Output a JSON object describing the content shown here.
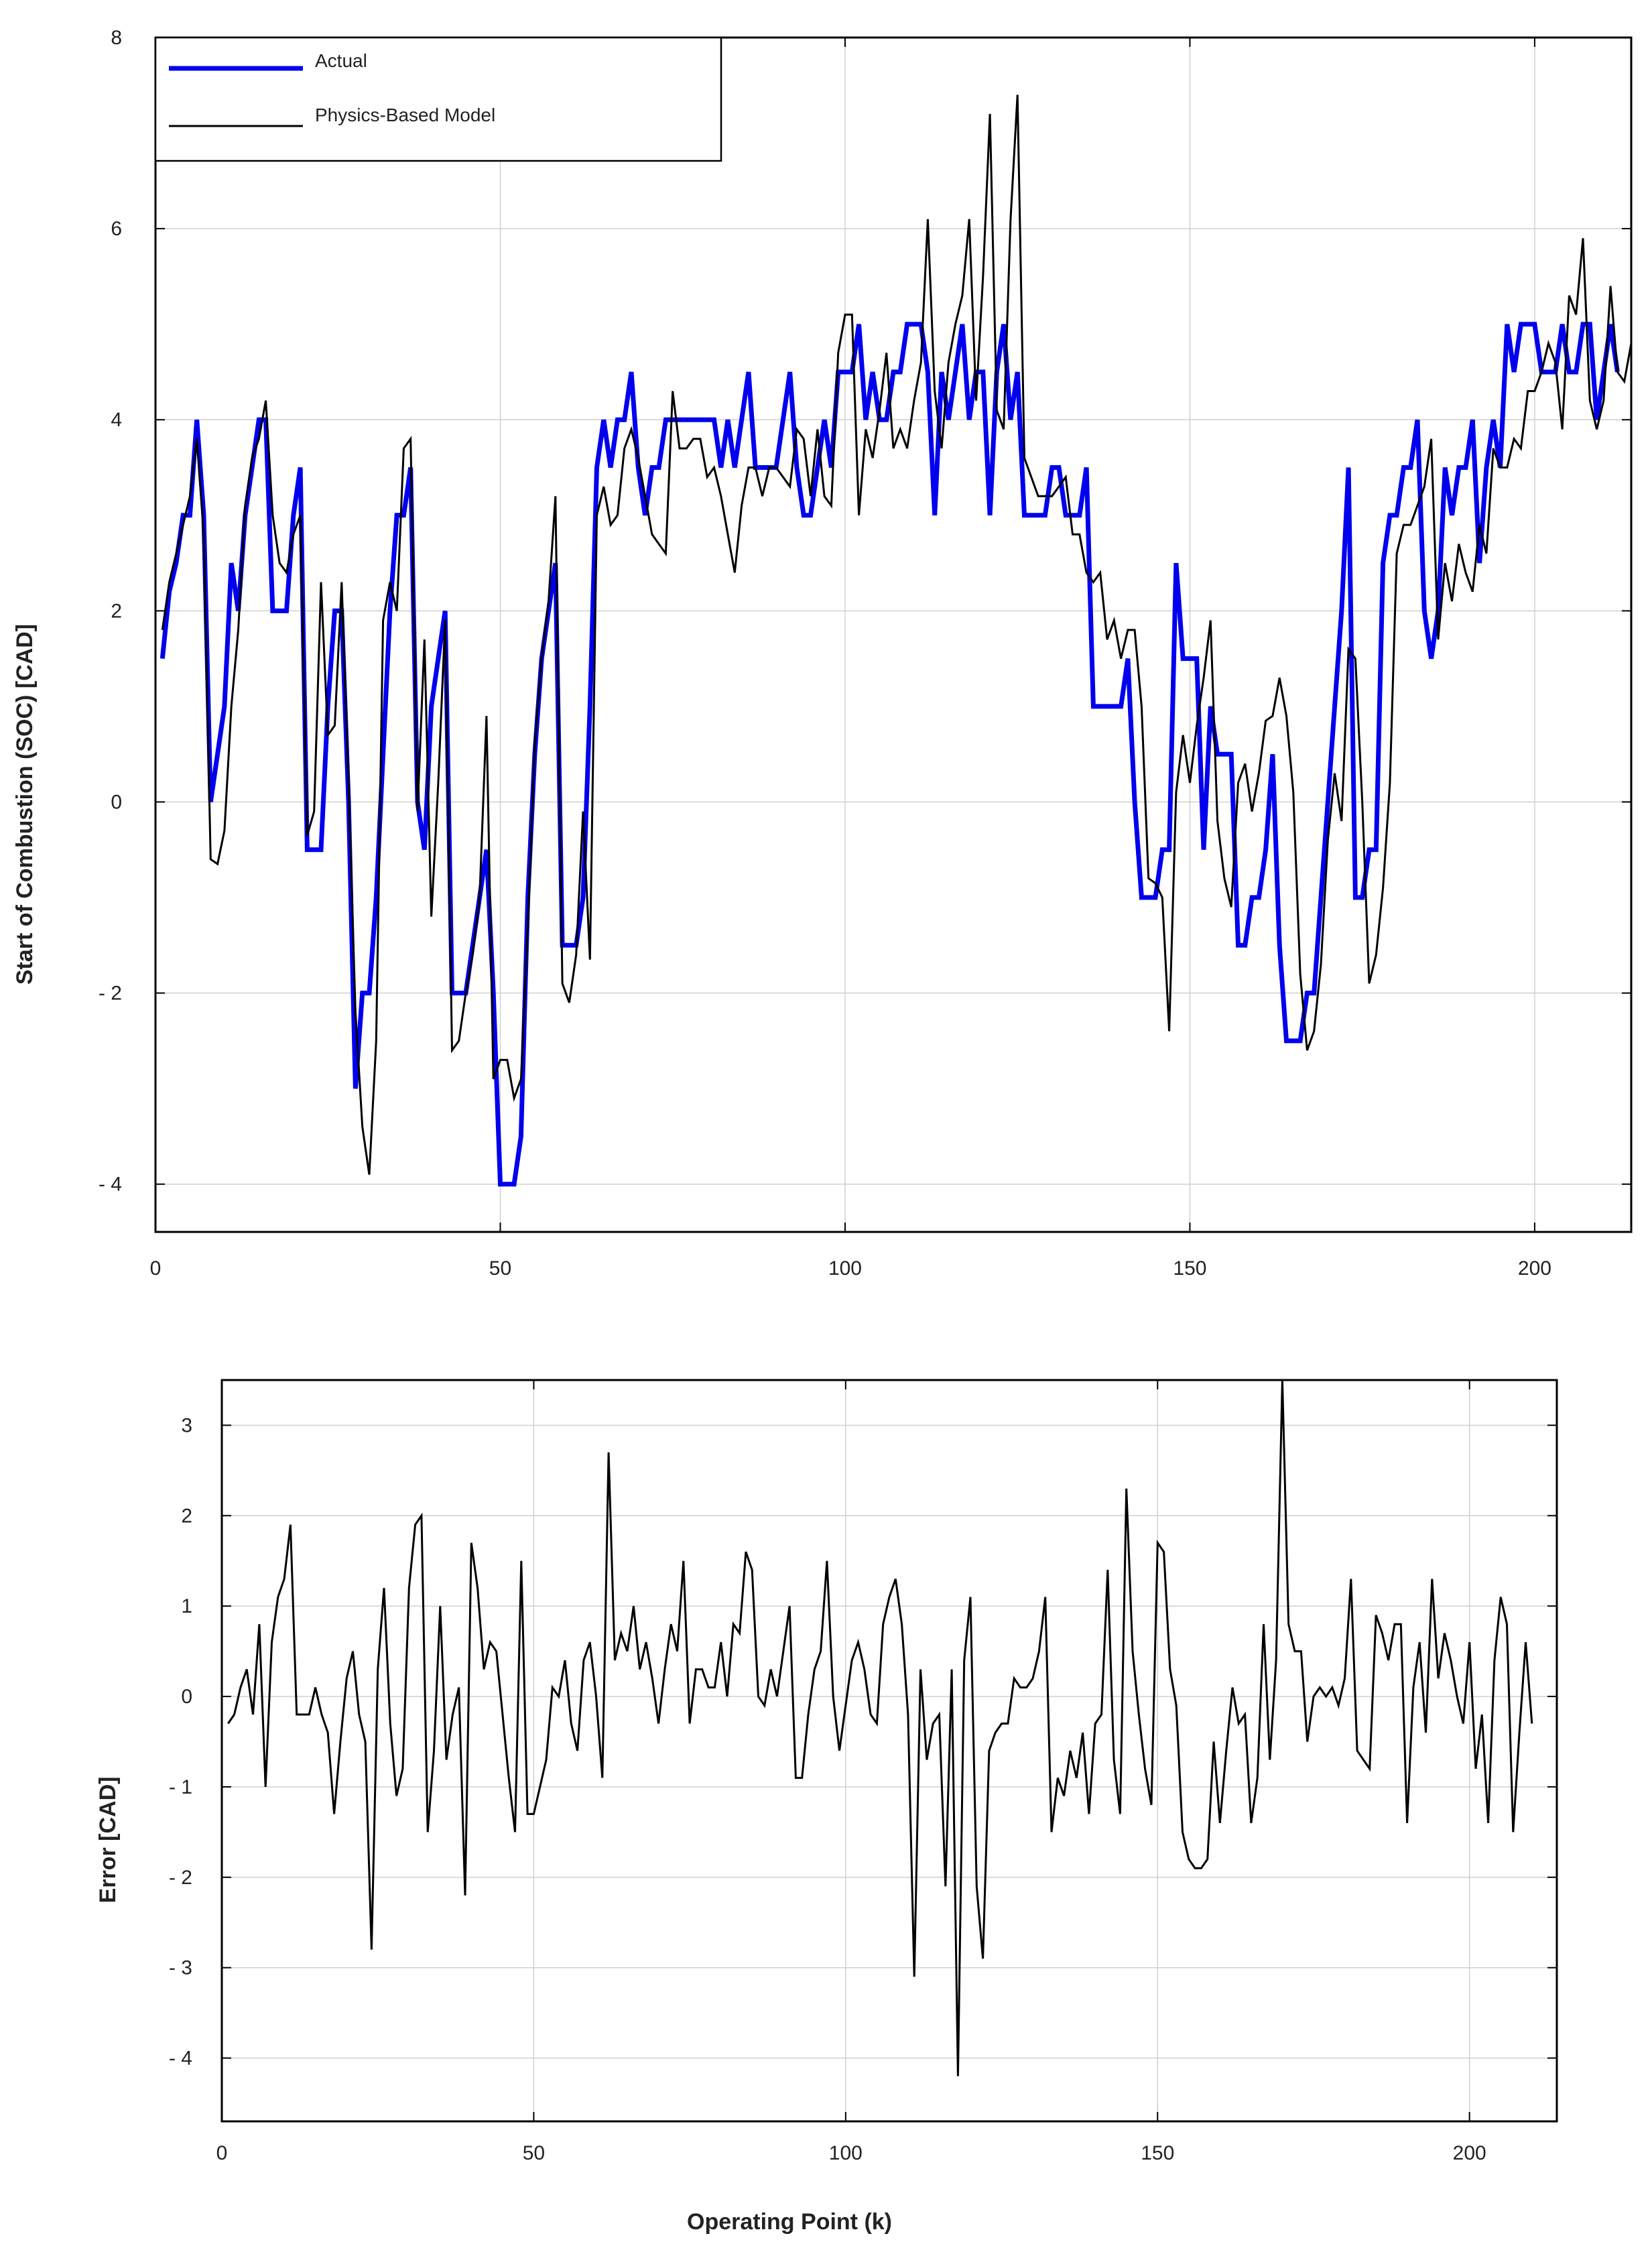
{
  "colors": {
    "actual": "#0000ee",
    "model": "#000000",
    "error": "#000000",
    "grid": "#d0d0d0",
    "axis": "#000000"
  },
  "chart_data": [
    {
      "type": "line",
      "ylabel": "Start of Combustion (SOC) [CAD]",
      "xlabel": "",
      "xlim": [
        0,
        214
      ],
      "ylim": [
        -4.5,
        8
      ],
      "xticks": [
        0,
        50,
        100,
        150,
        200
      ],
      "xtick_labels": [
        "0",
        "50",
        "100",
        "150",
        "200"
      ],
      "yticks": [
        -4,
        -2,
        0,
        2,
        4,
        6,
        8
      ],
      "ytick_labels": [
        "- 4",
        "- 2",
        "0",
        "2",
        "4",
        "6",
        "8"
      ],
      "grid": true,
      "legend": "top-left",
      "legend_entries": [
        "Actual",
        "Physics-Based Model"
      ],
      "x_start": 1,
      "series": [
        {
          "name": "Actual",
          "color": "#0000ee",
          "values": [
            1.5,
            2.2,
            2.5,
            3.0,
            3.0,
            4.0,
            3.0,
            0.0,
            0.5,
            1.0,
            2.5,
            2.0,
            3.0,
            3.5,
            4.0,
            4.0,
            2.0,
            2.0,
            2.0,
            3.0,
            3.5,
            -0.5,
            -0.5,
            -0.5,
            1.0,
            2.0,
            2.0,
            0.0,
            -3.0,
            -2.0,
            -2.0,
            -1.0,
            0.5,
            2.0,
            3.0,
            3.0,
            3.5,
            0.0,
            -0.5,
            1.0,
            1.5,
            2.0,
            -2.0,
            -2.0,
            -2.0,
            -1.5,
            -1.0,
            -0.5,
            -2.0,
            -4.0,
            -4.0,
            -4.0,
            -3.5,
            -1.0,
            0.5,
            1.5,
            2.0,
            2.5,
            -1.5,
            -1.5,
            -1.5,
            -1.0,
            1.0,
            3.5,
            4.0,
            3.5,
            4.0,
            4.0,
            4.5,
            3.5,
            3.0,
            3.5,
            3.5,
            4.0,
            4.0,
            4.0,
            4.0,
            4.0,
            4.0,
            4.0,
            4.0,
            3.5,
            4.0,
            3.5,
            4.0,
            4.5,
            3.5,
            3.5,
            3.5,
            3.5,
            4.0,
            4.5,
            3.5,
            3.0,
            3.0,
            3.5,
            4.0,
            3.5,
            4.5,
            4.5,
            4.5,
            5.0,
            4.0,
            4.5,
            4.0,
            4.0,
            4.5,
            4.5,
            5.0,
            5.0,
            5.0,
            4.5,
            3.0,
            4.5,
            4.0,
            4.5,
            5.0,
            4.0,
            4.5,
            4.5,
            3.0,
            4.5,
            5.0,
            4.0,
            4.5,
            3.0,
            3.0,
            3.0,
            3.0,
            3.5,
            3.5,
            3.0,
            3.0,
            3.0,
            3.5,
            1.0,
            1.0,
            1.0,
            1.0,
            1.0,
            1.5,
            0.0,
            -1.0,
            -1.0,
            -1.0,
            -0.5,
            -0.5,
            2.5,
            1.5,
            1.5,
            1.5,
            -0.5,
            1.0,
            0.5,
            0.5,
            0.5,
            -1.5,
            -1.5,
            -1.0,
            -1.0,
            -0.5,
            0.5,
            -1.5,
            -2.5,
            -2.5,
            -2.5,
            -2.0,
            -2.0,
            -1.0,
            0.0,
            1.0,
            2.0,
            3.5,
            -1.0,
            -1.0,
            -0.5,
            -0.5,
            2.5,
            3.0,
            3.0,
            3.5,
            3.5,
            4.0,
            2.0,
            1.5,
            2.0,
            3.5,
            3.0,
            3.5,
            3.5,
            4.0,
            2.5,
            3.5,
            4.0,
            3.5,
            5.0,
            4.5,
            5.0,
            5.0,
            5.0,
            4.5,
            4.5,
            4.5,
            5.0,
            4.5,
            4.5,
            5.0,
            5.0,
            4.0,
            4.5,
            5.0,
            4.5
          ]
        },
        {
          "name": "Physics-Based Model",
          "color": "#000000",
          "values": [
            1.8,
            2.3,
            2.6,
            2.9,
            3.2,
            3.8,
            2.8,
            -0.6,
            -0.65,
            -0.3,
            1.0,
            1.8,
            3.1,
            3.6,
            3.8,
            4.2,
            3.0,
            2.5,
            2.4,
            2.8,
            3.0,
            -0.35,
            -0.1,
            2.3,
            0.7,
            0.8,
            2.3,
            0.2,
            -2.2,
            -3.4,
            -3.9,
            -2.5,
            1.9,
            2.3,
            2.0,
            3.7,
            3.8,
            -0.1,
            1.7,
            -1.2,
            0.2,
            1.9,
            -2.6,
            -2.5,
            -2.0,
            -1.6,
            -1.0,
            0.9,
            -2.9,
            -2.7,
            -2.7,
            -3.1,
            -2.9,
            -1.3,
            0.6,
            1.5,
            2.1,
            3.2,
            -1.9,
            -2.1,
            -1.6,
            -0.1,
            -1.65,
            3.0,
            3.3,
            2.9,
            3.0,
            3.7,
            3.9,
            3.6,
            3.2,
            2.8,
            2.7,
            2.6,
            4.3,
            3.7,
            3.7,
            3.8,
            3.8,
            3.4,
            3.5,
            3.2,
            2.8,
            2.4,
            3.1,
            3.5,
            3.5,
            3.2,
            3.5,
            3.5,
            3.4,
            3.3,
            3.9,
            3.8,
            3.2,
            3.9,
            3.2,
            3.1,
            4.7,
            5.1,
            5.1,
            3.0,
            3.9,
            3.6,
            4.1,
            4.7,
            3.7,
            3.9,
            3.7,
            4.2,
            4.6,
            6.1,
            4.3,
            3.7,
            4.6,
            5.0,
            5.3,
            6.1,
            4.2,
            5.5,
            7.2,
            4.1,
            3.9,
            6.1,
            7.4,
            3.6,
            3.4,
            3.2,
            3.2,
            3.2,
            3.3,
            3.4,
            2.8,
            2.8,
            2.4,
            2.3,
            2.4,
            1.7,
            1.9,
            1.5,
            1.8,
            1.8,
            1.0,
            -0.8,
            -0.85,
            -1.0,
            -2.4,
            0.1,
            0.7,
            0.2,
            0.8,
            1.3,
            1.9,
            -0.2,
            -0.8,
            -1.1,
            0.2,
            0.4,
            -0.1,
            0.3,
            0.85,
            0.9,
            1.3,
            0.9,
            0.1,
            -1.8,
            -2.6,
            -2.4,
            -1.7,
            -0.4,
            0.3,
            -0.2,
            1.6,
            1.5,
            0.0,
            -1.9,
            -1.6,
            -0.9,
            0.2,
            2.6,
            2.9,
            2.9,
            3.1,
            3.3,
            3.8,
            1.7,
            2.5,
            2.1,
            2.7,
            2.4,
            2.2,
            2.9,
            2.6,
            3.7,
            3.5,
            3.5,
            3.8,
            3.7,
            4.3,
            4.3,
            4.5,
            4.8,
            4.6,
            3.9,
            5.3,
            5.1,
            5.9,
            4.2,
            3.9,
            4.2,
            5.4,
            4.5,
            4.4,
            4.8
          ]
        }
      ]
    },
    {
      "type": "line",
      "ylabel": "Error [CAD]",
      "xlabel": "Operating Point (k)",
      "xlim": [
        0,
        214
      ],
      "ylim": [
        -4.7,
        3.5
      ],
      "xticks": [
        0,
        50,
        100,
        150,
        200
      ],
      "xtick_labels": [
        "0",
        "50",
        "100",
        "150",
        "200"
      ],
      "yticks": [
        -4,
        -3,
        -2,
        -1,
        0,
        1,
        2,
        3
      ],
      "ytick_labels": [
        "- 4",
        "- 3",
        "- 2",
        "- 1",
        "0",
        "1",
        "2",
        "3"
      ],
      "grid": true,
      "x_start": 1,
      "series": [
        {
          "color": "#000000",
          "values": [
            -0.3,
            -0.2,
            0.1,
            0.3,
            -0.2,
            0.8,
            -1.0,
            0.6,
            1.1,
            1.3,
            1.9,
            -0.2,
            -0.2,
            -0.2,
            0.1,
            -0.2,
            -0.4,
            -1.3,
            -0.5,
            0.2,
            0.5,
            -0.2,
            -0.5,
            -2.8,
            0.3,
            1.2,
            -0.3,
            -1.1,
            -0.8,
            1.2,
            1.9,
            2.0,
            -1.5,
            -0.6,
            1.0,
            -0.7,
            -0.2,
            0.1,
            -2.2,
            1.7,
            1.2,
            0.3,
            0.6,
            0.5,
            -0.2,
            -0.9,
            -1.5,
            1.5,
            -1.3,
            -1.3,
            -1.0,
            -0.7,
            0.1,
            0.0,
            0.4,
            -0.3,
            -0.6,
            0.4,
            0.6,
            0.0,
            -0.9,
            2.7,
            0.4,
            0.7,
            0.5,
            1.0,
            0.3,
            0.6,
            0.2,
            -0.3,
            0.3,
            0.8,
            0.5,
            1.5,
            -0.3,
            0.3,
            0.3,
            0.1,
            0.1,
            0.6,
            0.0,
            0.8,
            0.7,
            1.6,
            1.4,
            0.0,
            -0.1,
            0.3,
            0.0,
            0.5,
            1.0,
            -0.9,
            -0.9,
            -0.2,
            0.3,
            0.5,
            1.5,
            0.0,
            -0.6,
            -0.1,
            0.4,
            0.6,
            0.3,
            -0.2,
            -0.3,
            0.8,
            1.1,
            1.3,
            0.8,
            -0.2,
            -3.1,
            0.3,
            -0.7,
            -0.3,
            -0.2,
            -2.1,
            0.3,
            -4.2,
            0.4,
            1.1,
            -2.1,
            -2.9,
            -0.6,
            -0.4,
            -0.3,
            -0.3,
            0.2,
            0.1,
            0.1,
            0.2,
            0.5,
            1.1,
            -1.5,
            -0.9,
            -1.1,
            -0.6,
            -0.9,
            -0.4,
            -1.3,
            -0.3,
            -0.2,
            1.4,
            -0.7,
            -1.3,
            2.3,
            0.5,
            -0.2,
            -0.8,
            -1.2,
            1.7,
            1.6,
            0.3,
            -0.1,
            -1.5,
            -1.8,
            -1.9,
            -1.9,
            -1.8,
            -0.5,
            -1.4,
            -0.6,
            0.1,
            -0.3,
            -0.2,
            -1.4,
            -0.9,
            0.8,
            -0.7,
            0.4,
            3.5,
            0.8,
            0.5,
            0.5,
            -0.5,
            0.0,
            0.1,
            0.0,
            0.1,
            -0.1,
            0.2,
            1.3,
            -0.6,
            -0.7,
            -0.8,
            0.9,
            0.7,
            0.4,
            0.8,
            0.8,
            -1.4,
            0.1,
            0.6,
            -0.4,
            1.3,
            0.2,
            0.7,
            0.4,
            0.0,
            -0.3,
            0.6,
            -0.8,
            -0.2,
            -1.4,
            0.4,
            1.1,
            0.8,
            -1.5,
            -0.4,
            0.6,
            -0.3
          ]
        }
      ]
    }
  ],
  "legend": {
    "items": [
      {
        "label": "Actual"
      },
      {
        "label": "Physics-Based Model"
      }
    ]
  }
}
